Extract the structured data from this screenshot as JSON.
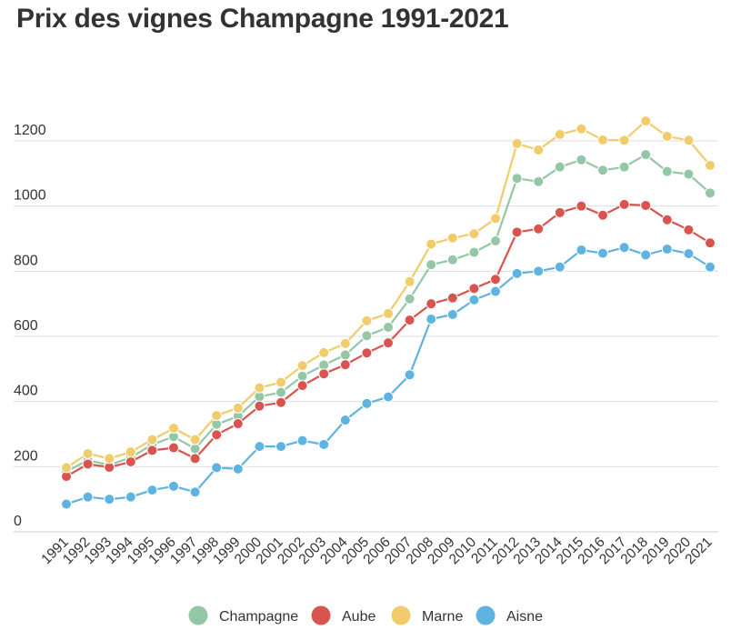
{
  "chart_data": {
    "type": "line",
    "title": "Prix des vignes Champagne 1991-2021",
    "xlabel": "",
    "ylabel": "",
    "ylim": [
      0,
      1300
    ],
    "y_ticks": [
      0,
      200,
      400,
      600,
      800,
      1000,
      1200
    ],
    "grid": true,
    "legend_position": "bottom",
    "categories": [
      "1991",
      "1992",
      "1993",
      "1994",
      "1995",
      "1996",
      "1997",
      "1998",
      "1999",
      "2000",
      "2001",
      "2002",
      "2003",
      "2004",
      "2005",
      "2006",
      "2007",
      "2008",
      "2009",
      "2010",
      "2011",
      "2012",
      "2013",
      "2014",
      "2015",
      "2016",
      "2017",
      "2018",
      "2019",
      "2020",
      "2021"
    ],
    "series": [
      {
        "name": "Champagne",
        "color": "#93c7a6",
        "values": [
          185,
          220,
          205,
          228,
          268,
          292,
          255,
          330,
          355,
          415,
          428,
          478,
          512,
          543,
          602,
          628,
          715,
          820,
          835,
          858,
          893,
          1085,
          1075,
          1120,
          1142,
          1110,
          1120,
          1158,
          1106,
          1098,
          1040
        ]
      },
      {
        "name": "Aube",
        "color": "#d9534f",
        "values": [
          170,
          208,
          198,
          215,
          250,
          258,
          225,
          298,
          332,
          386,
          397,
          449,
          485,
          513,
          549,
          580,
          650,
          700,
          718,
          747,
          775,
          920,
          930,
          980,
          1000,
          972,
          1005,
          1002,
          958,
          927,
          887
        ]
      },
      {
        "name": "Marne",
        "color": "#f0cc6b",
        "values": [
          197,
          240,
          225,
          245,
          283,
          318,
          283,
          357,
          380,
          442,
          459,
          510,
          550,
          578,
          648,
          670,
          768,
          883,
          902,
          915,
          962,
          1192,
          1172,
          1220,
          1237,
          1203,
          1202,
          1261,
          1214,
          1202,
          1125
        ]
      },
      {
        "name": "Aisne",
        "color": "#5fb3e0",
        "values": [
          85,
          107,
          100,
          107,
          128,
          140,
          122,
          197,
          193,
          262,
          262,
          280,
          268,
          343,
          394,
          414,
          482,
          653,
          667,
          712,
          738,
          793,
          800,
          813,
          865,
          855,
          873,
          850,
          868,
          854,
          813
        ]
      }
    ]
  }
}
